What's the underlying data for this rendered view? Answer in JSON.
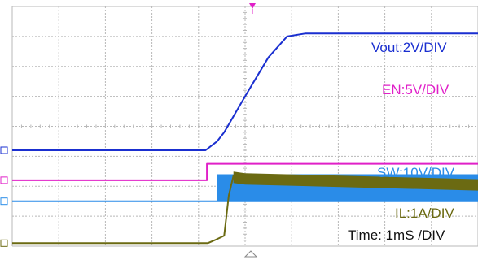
{
  "chart_data": {
    "type": "line",
    "title": "",
    "xlabel": "",
    "ylabel": "",
    "x_divisions": 10,
    "y_divisions": 8,
    "series": [
      {
        "name": "Vout:2V/DIV",
        "color": "#1a2fd0",
        "channel_marker": "C1",
        "points": [
          [
            0,
            3.2
          ],
          [
            4.15,
            3.2
          ],
          [
            4.4,
            3.5
          ],
          [
            4.55,
            3.8
          ],
          [
            5.0,
            5.0
          ],
          [
            5.5,
            6.3
          ],
          [
            5.9,
            7.0
          ],
          [
            6.3,
            7.1
          ],
          [
            10,
            7.1
          ]
        ]
      },
      {
        "name": "EN:5V/DIV",
        "color": "#e020c8",
        "channel_marker": "C2",
        "points": [
          [
            0,
            2.2
          ],
          [
            4.18,
            2.2
          ],
          [
            4.18,
            2.75
          ],
          [
            10,
            2.75
          ]
        ]
      },
      {
        "name": "SW:10V/DIV",
        "color": "#2a8ce8",
        "channel_marker": "C3",
        "points": [
          [
            0,
            1.5
          ],
          [
            4.4,
            1.5
          ],
          [
            4.4,
            1.5
          ],
          [
            10,
            1.5
          ]
        ],
        "switching_band": [
          4.4,
          10,
          1.5,
          2.4
        ]
      },
      {
        "name": "IL:1A/DIV",
        "color": "#6b6a12",
        "channel_marker": "C4",
        "points": [
          [
            0,
            0.1
          ],
          [
            4.2,
            0.1
          ],
          [
            4.35,
            0.2
          ],
          [
            4.55,
            0.35
          ],
          [
            4.65,
            1.7
          ],
          [
            4.75,
            2.35
          ],
          [
            5.0,
            2.3
          ],
          [
            10,
            2.1
          ]
        ]
      }
    ],
    "annotations": [
      "Time: 1mS /DIV"
    ],
    "grid": true
  }
}
